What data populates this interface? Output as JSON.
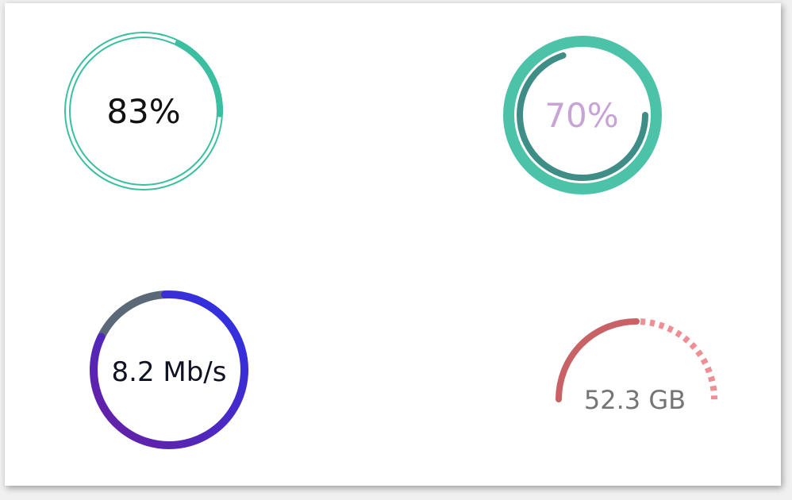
{
  "gauges": [
    {
      "label": "83%",
      "value": 0.83,
      "style": "thin-double-ring",
      "colors": {
        "progress": "#3bbfa0",
        "track": "#3bbfa0"
      }
    },
    {
      "label": "70%",
      "value": 0.7,
      "style": "thick-ring-inner-arc",
      "colors": {
        "outer": "#4cc3a8",
        "arc": "#3e8e87",
        "text": "#c7a3d6"
      }
    },
    {
      "label": "8.2 Mb/s",
      "value": 0.83,
      "style": "gradient-ring",
      "colors": {
        "gradient_start": "#2a33e8",
        "gradient_end": "#6a1fa0",
        "remainder": "#5a6878"
      }
    },
    {
      "label": "52.3 GB",
      "value": 0.5,
      "style": "half-arc-dashed",
      "colors": {
        "solid": "#c96267",
        "dashed": "#ef8f95",
        "text": "#757575"
      }
    }
  ]
}
